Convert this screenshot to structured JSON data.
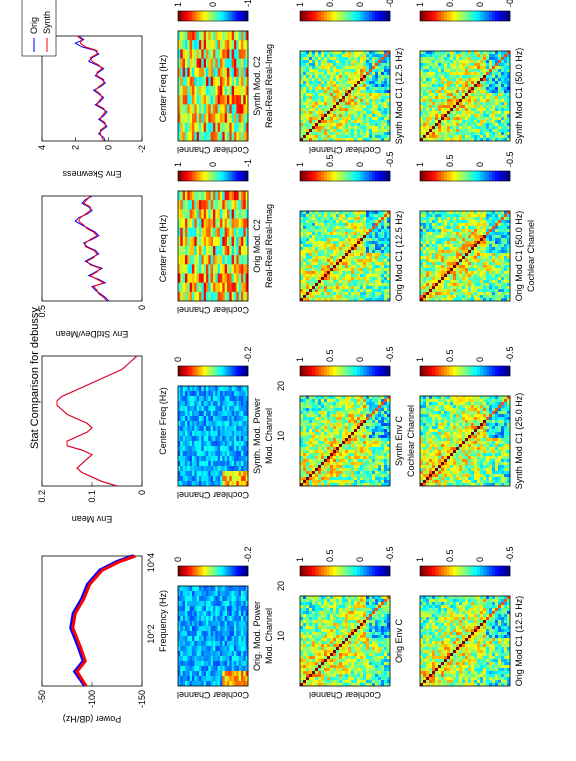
{
  "title": "Stat Comparison for debussy",
  "colormap_ticks": {
    "one_zero_neg1": [
      "1",
      "0",
      "-1"
    ],
    "zero_point_neg2": [
      "0",
      "-0.2"
    ],
    "pos1_half_zero_neghalf": [
      "1",
      "0.5",
      "0",
      "-0.5"
    ]
  },
  "chart_data": [
    {
      "type": "line",
      "id": "power-spectrum",
      "xlabel": "Frequency (Hz)",
      "ylabel": "Power (dB/Hz)",
      "x_scale": "log",
      "xticks": [
        "10^2",
        "10^4"
      ],
      "yticks": [
        "-50",
        "-100",
        "-150"
      ],
      "ylim": [
        -160,
        -40
      ],
      "series": [
        {
          "name": "",
          "color": "#0000ff",
          "x": [
            30,
            60,
            100,
            200,
            500,
            1000,
            2000,
            4000,
            8000,
            12000,
            16000
          ],
          "y": [
            -92,
            -80,
            -90,
            -84,
            -75,
            -78,
            -88,
            -95,
            -110,
            -130,
            -150
          ]
        },
        {
          "name": "",
          "color": "#ff0000",
          "x": [
            30,
            60,
            100,
            200,
            500,
            1000,
            2000,
            4000,
            8000,
            12000,
            16000
          ],
          "y": [
            -93,
            -82,
            -92,
            -86,
            -77,
            -80,
            -90,
            -97,
            -112,
            -132,
            -152
          ]
        }
      ]
    },
    {
      "type": "line",
      "id": "env-mean",
      "xlabel": "Center Freq (Hz)",
      "ylabel": "Env Mean",
      "yticks": [
        "0.2",
        "0.1",
        "0"
      ],
      "ylim": [
        0,
        0.2
      ],
      "series": [
        {
          "name": "",
          "color": "#0000ff",
          "x": [
            1,
            2,
            3,
            4,
            5,
            6,
            7,
            8,
            9,
            10,
            11,
            12,
            13,
            14,
            15,
            16,
            17,
            18,
            19,
            20,
            21,
            22,
            23,
            24,
            25,
            26,
            27,
            28,
            29,
            30
          ],
          "y": [
            0.05,
            0.08,
            0.1,
            0.12,
            0.13,
            0.12,
            0.11,
            0.1,
            0.12,
            0.15,
            0.15,
            0.13,
            0.11,
            0.1,
            0.11,
            0.13,
            0.15,
            0.16,
            0.17,
            0.17,
            0.16,
            0.14,
            0.12,
            0.1,
            0.08,
            0.06,
            0.04,
            0.03,
            0.02,
            0.01
          ]
        },
        {
          "name": "",
          "color": "#ff0000",
          "x": [
            1,
            2,
            3,
            4,
            5,
            6,
            7,
            8,
            9,
            10,
            11,
            12,
            13,
            14,
            15,
            16,
            17,
            18,
            19,
            20,
            21,
            22,
            23,
            24,
            25,
            26,
            27,
            28,
            29,
            30
          ],
          "y": [
            0.05,
            0.08,
            0.1,
            0.12,
            0.13,
            0.12,
            0.11,
            0.1,
            0.12,
            0.15,
            0.15,
            0.13,
            0.11,
            0.1,
            0.11,
            0.13,
            0.15,
            0.16,
            0.17,
            0.17,
            0.16,
            0.14,
            0.12,
            0.1,
            0.08,
            0.06,
            0.04,
            0.03,
            0.02,
            0.01
          ]
        }
      ]
    },
    {
      "type": "line",
      "id": "env-stddev-mean",
      "xlabel": "Center Freq (Hz)",
      "ylabel": "Env StdDev/Mean",
      "yticks": [
        "0.5",
        "0"
      ],
      "ylim": [
        0,
        0.6
      ],
      "series": [
        {
          "name": "",
          "color": "#0000ff",
          "x": [
            1,
            2,
            3,
            4,
            5,
            6,
            7,
            8,
            9,
            10,
            11,
            12,
            13,
            14,
            15,
            16,
            17,
            18,
            19,
            20,
            21,
            22,
            23,
            24,
            25,
            26,
            27,
            28,
            29,
            30
          ],
          "y": [
            0.2,
            0.22,
            0.25,
            0.28,
            0.3,
            0.22,
            0.26,
            0.32,
            0.28,
            0.24,
            0.3,
            0.34,
            0.3,
            0.26,
            0.28,
            0.33,
            0.35,
            0.3,
            0.26,
            0.28,
            0.32,
            0.36,
            0.4,
            0.38,
            0.33,
            0.3,
            0.32,
            0.36,
            0.34,
            0.3
          ]
        },
        {
          "name": "",
          "color": "#ff0000",
          "x": [
            1,
            2,
            3,
            4,
            5,
            6,
            7,
            8,
            9,
            10,
            11,
            12,
            13,
            14,
            15,
            16,
            17,
            18,
            19,
            20,
            21,
            22,
            23,
            24,
            25,
            26,
            27,
            28,
            29,
            30
          ],
          "y": [
            0.21,
            0.23,
            0.26,
            0.27,
            0.29,
            0.23,
            0.27,
            0.31,
            0.27,
            0.25,
            0.31,
            0.33,
            0.29,
            0.27,
            0.29,
            0.34,
            0.34,
            0.31,
            0.27,
            0.29,
            0.33,
            0.35,
            0.38,
            0.37,
            0.34,
            0.31,
            0.31,
            0.35,
            0.33,
            0.31
          ]
        }
      ]
    },
    {
      "type": "line",
      "id": "env-skewness",
      "xlabel": "Center Freq (Hz)",
      "ylabel": "Env Skewness",
      "yticks": [
        "4",
        "2",
        "0",
        "-2"
      ],
      "ylim": [
        -2,
        4
      ],
      "legend": [
        "Orig",
        "Synth"
      ],
      "legend_position": "top-right",
      "series": [
        {
          "name": "Orig",
          "color": "#0000ff",
          "x": [
            1,
            2,
            3,
            4,
            5,
            6,
            7,
            8,
            9,
            10,
            11,
            12,
            13,
            14,
            15,
            16,
            17,
            18,
            19,
            20,
            21,
            22,
            23,
            24,
            25,
            26,
            27,
            28,
            29,
            30
          ],
          "y": [
            0.2,
            0.3,
            0.6,
            0.4,
            0.1,
            0.3,
            0.6,
            0.3,
            0.1,
            0.4,
            0.8,
            0.5,
            0.3,
            0.6,
            0.9,
            0.5,
            0.2,
            0.4,
            0.8,
            0.6,
            0.3,
            0.7,
            1.2,
            1.0,
            0.6,
            0.8,
            1.6,
            2.0,
            1.5,
            1.8
          ]
        },
        {
          "name": "Synth",
          "color": "#ff0000",
          "x": [
            1,
            2,
            3,
            4,
            5,
            6,
            7,
            8,
            9,
            10,
            11,
            12,
            13,
            14,
            15,
            16,
            17,
            18,
            19,
            20,
            21,
            22,
            23,
            24,
            25,
            26,
            27,
            28,
            29,
            30
          ],
          "y": [
            0.3,
            0.4,
            0.5,
            0.5,
            0.2,
            0.2,
            0.5,
            0.4,
            0.2,
            0.3,
            0.7,
            0.6,
            0.4,
            0.5,
            0.8,
            0.6,
            0.3,
            0.3,
            0.7,
            0.7,
            0.4,
            0.6,
            1.0,
            1.1,
            0.7,
            0.7,
            1.4,
            1.7,
            1.6,
            1.9
          ]
        }
      ]
    },
    {
      "type": "heatmap",
      "id": "orig-mod-power",
      "title": "Orig. Mod. Power",
      "xlabel": "Mod. Channel",
      "ylabel": "Cochlear Channel",
      "xticks": [
        "10",
        "20"
      ],
      "colorbar": "zero_point_neg2"
    },
    {
      "type": "heatmap",
      "id": "synth-mod-power",
      "title": "Synth. Mod. Power",
      "xlabel": "Mod. Channel",
      "ylabel": "Cochlear Channel",
      "xticks": [
        "10",
        "20"
      ],
      "colorbar": "zero_point_neg2"
    },
    {
      "type": "heatmap",
      "id": "orig-mod-c2",
      "title": "Orig Mod. C2",
      "xlabel": "Real-Real Real-Imag",
      "ylabel": "Cochlear Channel",
      "colorbar": "one_zero_neg1"
    },
    {
      "type": "heatmap",
      "id": "synth-mod-c2",
      "title": "Synth Mod. C2",
      "xlabel": "Real-Real Real-Imag",
      "ylabel": "Cochlear Channel",
      "colorbar": "one_zero_neg1"
    },
    {
      "type": "heatmap",
      "id": "orig-env-c",
      "title": "Orig Env C",
      "xlabel": "",
      "ylabel": "Cochlear Channel",
      "colorbar": "pos1_half_zero_neghalf"
    },
    {
      "type": "heatmap",
      "id": "synth-env-c",
      "title": "Synth Env C",
      "xlabel": "Cochlear Channel",
      "ylabel": "",
      "colorbar": "pos1_half_zero_neghalf"
    },
    {
      "type": "heatmap",
      "id": "orig-mod-c1-12-5",
      "title": "Orig Mod C1 (12.5 Hz)",
      "xlabel": "",
      "ylabel": "",
      "colorbar": "pos1_half_zero_neghalf"
    },
    {
      "type": "heatmap",
      "id": "synth-mod-c1-12-5",
      "title": "Synth Mod C1 (12.5 Hz)",
      "xlabel": "",
      "ylabel": "Cochlear Channel",
      "colorbar": "pos1_half_zero_neghalf"
    },
    {
      "type": "heatmap",
      "id": "orig-mod-c1-12-5-b",
      "title": "Orig Mod C1 (12.5 Hz)",
      "xlabel": "",
      "ylabel": "",
      "colorbar": "pos1_half_zero_neghalf"
    },
    {
      "type": "heatmap",
      "id": "synth-mod-c1-25",
      "title": "Synth Mod C1 (25.0 Hz)",
      "xlabel": "",
      "ylabel": "",
      "colorbar": "pos1_half_zero_neghalf"
    },
    {
      "type": "heatmap",
      "id": "orig-mod-c1-50",
      "title": "Orig Mod C1 (50.0 Hz)",
      "xlabel": "Cochlear Channel",
      "ylabel": "",
      "colorbar": "pos1_half_zero_neghalf"
    },
    {
      "type": "heatmap",
      "id": "synth-mod-c1-50",
      "title": "Synth Mod C1 (50.0 Hz)",
      "xlabel": "",
      "ylabel": "",
      "colorbar": "pos1_half_zero_neghalf"
    }
  ]
}
